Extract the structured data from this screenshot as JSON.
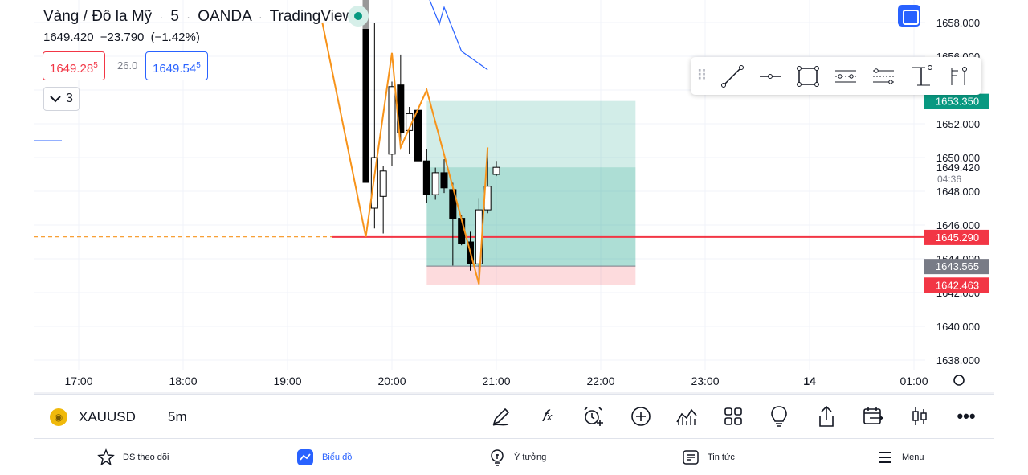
{
  "header": {
    "symbol_name": "Vàng / Đô la Mỹ",
    "interval": "5",
    "exchange": "OANDA",
    "source": "TradingView",
    "last_price": "1649.420",
    "change": "−23.790",
    "change_pct": "(−1.42%)"
  },
  "trade": {
    "sell_main": "1649.28",
    "sell_sup": "5",
    "spread": "26.0",
    "buy_main": "1649.54",
    "buy_sup": "5"
  },
  "indicators_collapse": {
    "count": "3"
  },
  "colors": {
    "up": "#ffffff",
    "down": "#000000",
    "zigzag": "#f7931a",
    "line": "#f23645",
    "target": "#089981",
    "stop": "#f23645",
    "accent": "#2962ff"
  },
  "chart_data": {
    "type": "candlestick",
    "symbol": "XAUUSD",
    "y_range": [
      1637,
      1659
    ],
    "y_ticks": [
      "1658.000",
      "1656.000",
      "1654.000",
      "1652.000",
      "1650.000",
      "1648.000",
      "1646.000",
      "1644.000",
      "1642.000",
      "1640.000",
      "1638.000"
    ],
    "y_tick_values": [
      1658,
      1656,
      1654,
      1652,
      1650,
      1648,
      1646,
      1644,
      1642,
      1640,
      1638
    ],
    "x_ticks": [
      "17:00",
      "18:00",
      "19:00",
      "20:00",
      "21:00",
      "22:00",
      "23:00",
      "14",
      "01:00"
    ],
    "price_labels": [
      {
        "text": "1653.350",
        "value": 1653.35,
        "color": "#089981"
      },
      {
        "text": "1645.290",
        "value": 1645.29,
        "color": "#f23645"
      },
      {
        "text": "1643.565",
        "value": 1643.565,
        "color": "#787b86"
      },
      {
        "text": "1642.463",
        "value": 1642.463,
        "color": "#f23645"
      }
    ],
    "current_price": {
      "text": "1649.420",
      "value": 1649.42,
      "countdown": "04:36"
    },
    "horizontal_line": 1645.29,
    "position": {
      "target": 1653.35,
      "entry": 1643.565,
      "stop": 1642.463,
      "start_time": "20:20",
      "end_time": "22:20"
    },
    "candles": [
      {
        "t": "19:50",
        "o": 1647.0,
        "h": 1658.0,
        "l": 1645.8,
        "c": 1650.0
      },
      {
        "t": "19:55",
        "o": 1647.7,
        "h": 1649.5,
        "l": 1645.5,
        "c": 1649.2
      },
      {
        "t": "20:00",
        "o": 1650.2,
        "h": 1654.5,
        "l": 1649.5,
        "c": 1654.2
      },
      {
        "t": "20:05",
        "o": 1654.3,
        "h": 1656.1,
        "l": 1651.0,
        "c": 1651.5
      },
      {
        "t": "20:10",
        "o": 1651.6,
        "h": 1653.0,
        "l": 1650.2,
        "c": 1652.6
      },
      {
        "t": "20:15",
        "o": 1652.8,
        "h": 1653.2,
        "l": 1649.5,
        "c": 1649.8
      },
      {
        "t": "20:20",
        "o": 1649.8,
        "h": 1650.5,
        "l": 1647.3,
        "c": 1647.8
      },
      {
        "t": "20:25",
        "o": 1647.8,
        "h": 1649.4,
        "l": 1647.5,
        "c": 1649.1
      },
      {
        "t": "20:30",
        "o": 1649.1,
        "h": 1649.9,
        "l": 1647.9,
        "c": 1648.2
      },
      {
        "t": "20:35",
        "o": 1648.1,
        "h": 1648.5,
        "l": 1643.6,
        "c": 1646.4
      },
      {
        "t": "20:40",
        "o": 1646.4,
        "h": 1646.6,
        "l": 1644.8,
        "c": 1644.9
      },
      {
        "t": "20:45",
        "o": 1645.0,
        "h": 1645.6,
        "l": 1643.3,
        "c": 1643.7
      },
      {
        "t": "20:50",
        "o": 1643.7,
        "h": 1647.6,
        "l": 1642.5,
        "c": 1646.9
      },
      {
        "t": "20:55",
        "o": 1646.9,
        "h": 1650.5,
        "l": 1646.7,
        "c": 1648.3
      },
      {
        "t": "21:00",
        "o": 1649.0,
        "h": 1649.8,
        "l": 1648.9,
        "c": 1649.42
      }
    ],
    "zigzag": [
      {
        "t": "19:20",
        "v": 1658.0
      },
      {
        "t": "19:45",
        "v": 1645.3
      },
      {
        "t": "20:00",
        "v": 1656.2
      },
      {
        "t": "20:05",
        "v": 1650.6
      },
      {
        "t": "20:20",
        "v": 1654.0
      },
      {
        "t": "20:50",
        "v": 1642.5
      },
      {
        "t": "20:55",
        "v": 1650.6
      }
    ],
    "blue_ma": [
      {
        "t": "20:30",
        "v": 1658.9
      },
      {
        "t": "20:40",
        "v": 1656.3
      },
      {
        "t": "20:55",
        "v": 1655.2
      }
    ],
    "orange_dashed_level": 1645.3,
    "left_blue_segment_level": 1651.0
  },
  "drawing_toolbar": {
    "grip_icon": "drag-handle-icon",
    "tools": [
      "trend-line-icon",
      "horizontal-line-icon",
      "rectangle-icon",
      "parallel-channel-icon",
      "regression-channel-icon",
      "price-range-icon",
      "pitchfork-icon"
    ]
  },
  "bottom_toolbar": {
    "symbol": "XAUUSD",
    "interval_label": "5m",
    "icons": [
      "brush-icon",
      "fx-indicators-icon",
      "alert-icon",
      "add-icon",
      "chart-type-icon",
      "templates-icon",
      "ideas-bulb-icon",
      "share-icon",
      "compare-icon",
      "candles-icon",
      "more-icon"
    ]
  },
  "bottom_nav": {
    "items": [
      {
        "label": "DS theo dõi",
        "icon": "star-icon"
      },
      {
        "label": "Biểu đồ",
        "icon": "chart-icon",
        "active": true
      },
      {
        "label": "Ý tưởng",
        "icon": "idea-icon"
      },
      {
        "label": "Tin tức",
        "icon": "news-icon"
      },
      {
        "label": "Menu",
        "icon": "menu-icon"
      }
    ]
  }
}
